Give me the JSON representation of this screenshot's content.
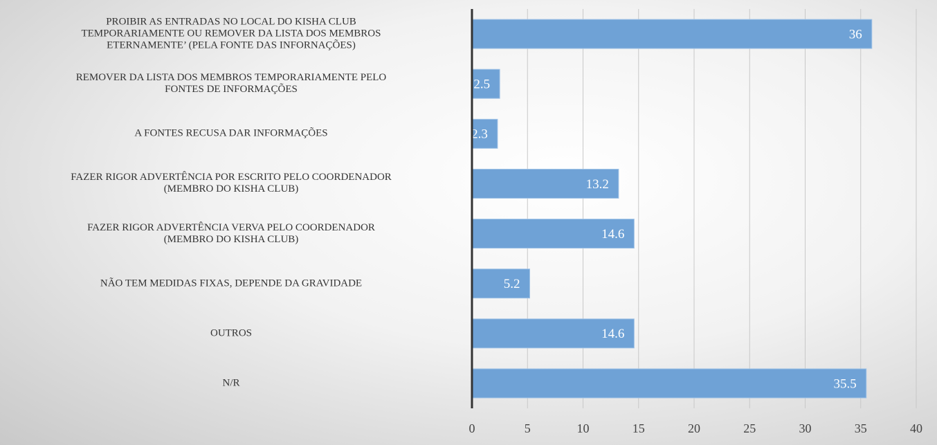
{
  "chart_data": {
    "type": "bar",
    "orientation": "horizontal",
    "categories": [
      "PROIBIR AS ENTRADAS NO LOCAL DO KISHA CLUB\nTEMPORARIAMENTE OU REMOVER DA LISTA DOS MEMBROS\nETERNAMENTE’ (PELA FONTE DAS INFORNAÇÕES)",
      "REMOVER DA LISTA DOS MEMBROS TEMPORARIAMENTE PELO\nFONTES DE INFORMAÇÕES",
      "A FONTES RECUSA DAR INFORMAÇÕES",
      "FAZER RIGOR ADVERTÊNCIA POR ESCRITO PELO COORDENADOR\n(MEMBRO DO KISHA CLUB)",
      "FAZER RIGOR ADVERTÊNCIA VERVA PELO COORDENADOR\n(MEMBRO DO KISHA CLUB)",
      "NÃO TEM MEDIDAS FIXAS, DEPENDE DA GRAVIDADE",
      "OUTROS",
      "N/R"
    ],
    "values": [
      36,
      2.5,
      2.3,
      13.2,
      14.6,
      5.2,
      14.6,
      35.5
    ],
    "color": "#6fa2d6",
    "xlim": [
      0,
      40
    ],
    "xticks": [
      0,
      5,
      10,
      15,
      20,
      25,
      30,
      35,
      40
    ],
    "grid": true
  }
}
